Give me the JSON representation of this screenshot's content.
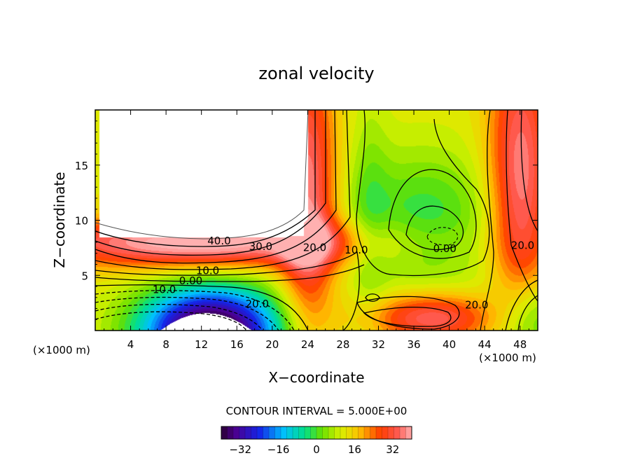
{
  "chart_data": {
    "type": "contour",
    "title": "zonal velocity",
    "xlabel": "X−coordinate",
    "ylabel": "Z−coordinate",
    "x_unit_left": "(×1000 m)",
    "x_unit_right": "(×1000 m)",
    "xlim": [
      0,
      50
    ],
    "ylim": [
      0,
      20
    ],
    "x_ticks": [
      {
        "v": 4,
        "label": "4"
      },
      {
        "v": 8,
        "label": "8"
      },
      {
        "v": 12,
        "label": "12"
      },
      {
        "v": 16,
        "label": "16"
      },
      {
        "v": 20,
        "label": "20"
      },
      {
        "v": 24,
        "label": "24"
      },
      {
        "v": 28,
        "label": "28"
      },
      {
        "v": 32,
        "label": "32"
      },
      {
        "v": 36,
        "label": "36"
      },
      {
        "v": 40,
        "label": "40"
      },
      {
        "v": 44,
        "label": "44"
      },
      {
        "v": 48,
        "label": "48"
      }
    ],
    "y_ticks": [
      {
        "v": 5,
        "label": "5"
      },
      {
        "v": 10,
        "label": "10"
      },
      {
        "v": 15,
        "label": "15"
      }
    ],
    "contour_interval_text": "CONTOUR INTERVAL = 5.000E+00",
    "contour_interval": 5,
    "colorbar": {
      "min": -40,
      "max": 40,
      "ticks": [
        {
          "v": -32,
          "label": "−32"
        },
        {
          "v": -16,
          "label": "−16"
        },
        {
          "v": 0,
          "label": "0"
        },
        {
          "v": 16,
          "label": "16"
        },
        {
          "v": 32,
          "label": "32"
        }
      ]
    },
    "contour_labels": [
      {
        "text": "40.0",
        "x": 14.0,
        "y": 7.8
      },
      {
        "text": "30.0",
        "x": 18.7,
        "y": 7.3
      },
      {
        "text": "20.0",
        "x": 24.8,
        "y": 7.2
      },
      {
        "text": "10.0",
        "x": 29.5,
        "y": 7.0
      },
      {
        "text": "10.0",
        "x": 12.7,
        "y": 5.1
      },
      {
        "text": "0.00",
        "x": 10.8,
        "y": 4.2
      },
      {
        "text": "10.0",
        "x": 7.8,
        "y": 3.4
      },
      {
        "text": "20.0",
        "x": 18.3,
        "y": 2.1
      },
      {
        "text": "0.00",
        "x": 39.5,
        "y": 7.1
      },
      {
        "text": "20.0",
        "x": 48.3,
        "y": 7.4
      },
      {
        "text": "20.0",
        "x": 43.1,
        "y": 2.0
      }
    ]
  },
  "colors": {
    "frame": "#000000",
    "missing": "#ffffff"
  }
}
